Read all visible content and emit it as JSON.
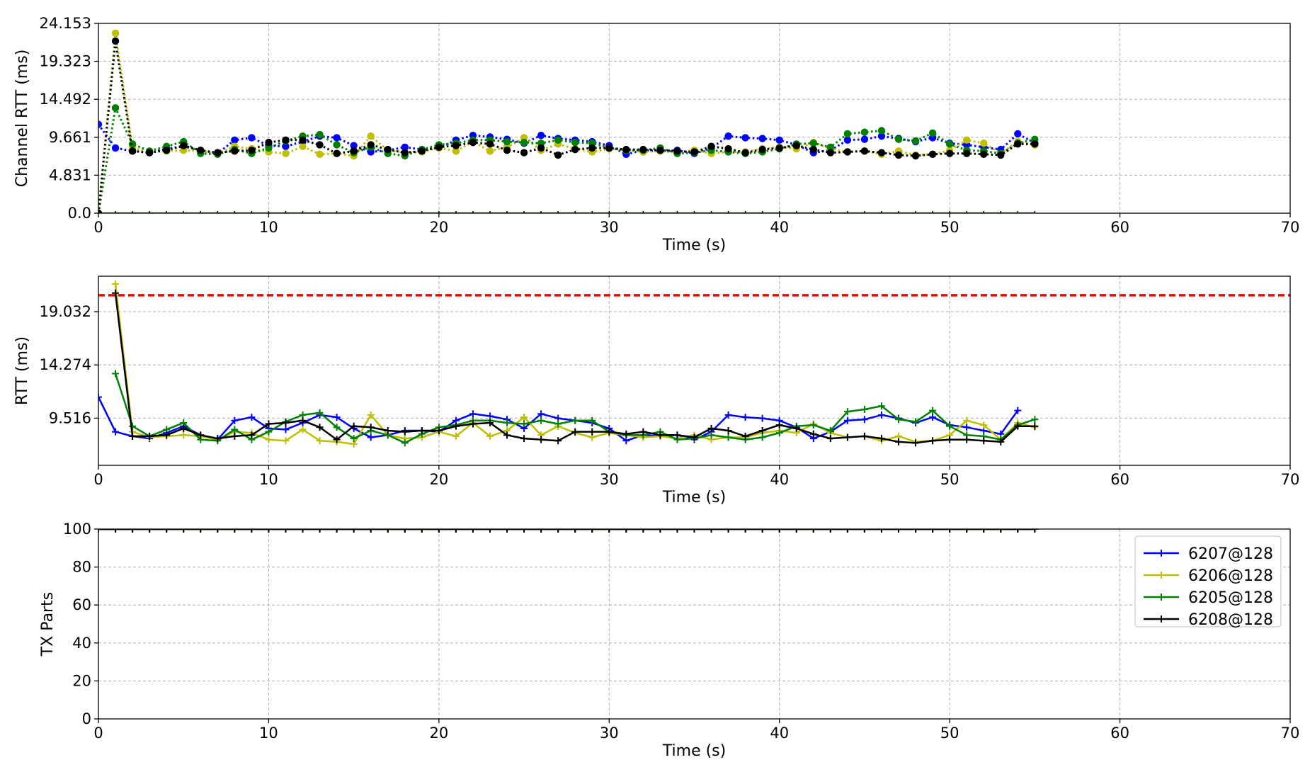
{
  "chart_data": [
    {
      "type": "line",
      "line_style": "dotted",
      "marker": "circle",
      "xlabel": "Time (s)",
      "ylabel": "Channel RTT (ms)",
      "xlim": [
        0,
        70
      ],
      "ylim": [
        0,
        24.153
      ],
      "xticks": [
        "0",
        "10",
        "20",
        "30",
        "40",
        "50",
        "60",
        "70"
      ],
      "yticks": [
        {
          "value": 0,
          "label": "0.0"
        },
        {
          "value": 4.831,
          "label": "4.831"
        },
        {
          "value": 9.661,
          "label": "9.661"
        },
        {
          "value": 14.492,
          "label": "14.492"
        },
        {
          "value": 19.323,
          "label": "19.323"
        },
        {
          "value": 24.153,
          "label": "24.153"
        }
      ],
      "grid": true,
      "baseline": {
        "y": 0,
        "x_range": [
          0,
          55
        ],
        "color": "#2e7d32"
      },
      "series": [
        {
          "name": "6207@128",
          "color": "#0000ff",
          "x": [
            0,
            1,
            2,
            3,
            4,
            5,
            6,
            7,
            8,
            9,
            10,
            11,
            12,
            13,
            14,
            15,
            16,
            17,
            18,
            19,
            20,
            21,
            22,
            23,
            24,
            25,
            26,
            27,
            28,
            29,
            30,
            31,
            32,
            33,
            34,
            35,
            36,
            37,
            38,
            39,
            40,
            41,
            42,
            43,
            44,
            45,
            46,
            47,
            48,
            49,
            50,
            51,
            52,
            53,
            54,
            55
          ],
          "y": [
            11.3,
            8.3,
            7.9,
            7.7,
            8.2,
            8.5,
            8.0,
            7.6,
            9.3,
            9.6,
            8.6,
            8.5,
            9.1,
            9.8,
            9.6,
            8.6,
            7.8,
            8.0,
            8.4,
            8.1,
            8.3,
            9.3,
            9.9,
            9.7,
            9.4,
            8.9,
            9.9,
            9.5,
            9.3,
            9.1,
            8.6,
            7.5,
            8.0,
            7.9,
            8.0,
            7.6,
            8.3,
            9.8,
            9.6,
            9.5,
            9.3,
            8.7,
            7.7,
            8.0,
            9.3,
            9.4,
            9.8,
            9.5,
            9.1,
            9.6,
            8.9,
            8.7,
            8.4,
            8.1,
            10.1,
            8.9
          ]
        },
        {
          "name": "6206@128",
          "color": "#bfbf00",
          "x": [
            0,
            1,
            2,
            3,
            4,
            5,
            6,
            7,
            8,
            9,
            10,
            11,
            12,
            13,
            14,
            15,
            16,
            17,
            18,
            19,
            20,
            21,
            22,
            23,
            24,
            25,
            26,
            27,
            28,
            29,
            30,
            31,
            32,
            33,
            34,
            35,
            36,
            37,
            38,
            39,
            40,
            41,
            42,
            43,
            44,
            45,
            46,
            47,
            48,
            49,
            50,
            51,
            52,
            53,
            54,
            55
          ],
          "y": [
            0,
            22.9,
            8.3,
            7.8,
            7.9,
            8.0,
            7.9,
            7.6,
            8.5,
            8.2,
            7.8,
            7.6,
            8.5,
            7.5,
            7.6,
            7.3,
            9.8,
            8.0,
            7.7,
            7.8,
            8.3,
            7.9,
            9.1,
            7.9,
            8.4,
            9.6,
            8.0,
            8.8,
            8.2,
            7.8,
            8.2,
            8.0,
            7.8,
            7.9,
            7.7,
            8.0,
            7.6,
            7.8,
            7.8,
            8.2,
            8.4,
            8.2,
            9.0,
            8.2,
            7.8,
            7.9,
            7.5,
            7.9,
            7.4,
            7.5,
            8.0,
            9.3,
            8.9,
            7.6,
            9.1,
            8.7
          ]
        },
        {
          "name": "6205@128",
          "color": "#008000",
          "x": [
            0,
            1,
            2,
            3,
            4,
            5,
            6,
            7,
            8,
            9,
            10,
            11,
            12,
            13,
            14,
            15,
            16,
            17,
            18,
            19,
            20,
            21,
            22,
            23,
            24,
            25,
            26,
            27,
            28,
            29,
            30,
            31,
            32,
            33,
            34,
            35,
            36,
            37,
            38,
            39,
            40,
            41,
            42,
            43,
            44,
            45,
            46,
            47,
            48,
            49,
            50,
            51,
            52,
            53,
            54,
            55
          ],
          "y": [
            0,
            13.4,
            8.8,
            7.9,
            8.5,
            9.1,
            7.6,
            7.5,
            8.1,
            7.6,
            8.3,
            9.2,
            9.8,
            10.0,
            8.7,
            7.7,
            8.4,
            7.6,
            7.3,
            8.1,
            8.7,
            8.9,
            9.3,
            9.3,
            9.1,
            9.0,
            8.9,
            9.3,
            9.0,
            8.9,
            8.3,
            8.0,
            8.0,
            8.3,
            7.6,
            7.7,
            8.0,
            7.8,
            7.6,
            7.8,
            8.2,
            8.8,
            8.9,
            8.4,
            10.1,
            10.3,
            10.5,
            9.4,
            9.2,
            10.2,
            8.8,
            8.0,
            7.9,
            7.6,
            8.9,
            9.4
          ]
        },
        {
          "name": "6208@128",
          "color": "#000000",
          "x": [
            0,
            1,
            2,
            3,
            4,
            5,
            6,
            7,
            8,
            9,
            10,
            11,
            12,
            13,
            14,
            15,
            16,
            17,
            18,
            19,
            20,
            21,
            22,
            23,
            24,
            25,
            26,
            27,
            28,
            29,
            30,
            31,
            32,
            33,
            34,
            35,
            36,
            37,
            38,
            39,
            40,
            41,
            42,
            43,
            44,
            45,
            46,
            47,
            48,
            49,
            50,
            51,
            52,
            53,
            54,
            55
          ],
          "y": [
            0,
            21.9,
            7.9,
            7.7,
            8.0,
            8.6,
            8.0,
            7.7,
            7.9,
            8.0,
            9.0,
            9.3,
            9.3,
            8.7,
            7.6,
            7.9,
            8.7,
            8.1,
            7.7,
            7.9,
            8.4,
            8.6,
            9.0,
            8.8,
            8.0,
            7.7,
            8.3,
            7.4,
            8.1,
            8.3,
            8.3,
            8.1,
            8.1,
            8.0,
            7.9,
            7.8,
            8.5,
            8.2,
            7.7,
            8.1,
            8.3,
            8.6,
            8.1,
            7.7,
            7.8,
            7.9,
            7.7,
            7.4,
            7.3,
            7.5,
            7.6,
            7.6,
            7.5,
            7.4,
            8.8,
            8.8
          ]
        }
      ]
    },
    {
      "type": "line",
      "line_style": "solid",
      "marker": "plus",
      "xlabel": "Time (s)",
      "ylabel": "RTT (ms)",
      "xlim": [
        0,
        70
      ],
      "ylim": [
        5.3,
        22.2
      ],
      "xticks": [
        "0",
        "10",
        "20",
        "30",
        "40",
        "50",
        "60",
        "70"
      ],
      "yticks": [
        {
          "value": 9.516,
          "label": "9.516"
        },
        {
          "value": 14.274,
          "label": "14.274"
        },
        {
          "value": 19.032,
          "label": "19.032"
        }
      ],
      "grid": true,
      "threshold": {
        "y": 20.5,
        "color": "#ff0000",
        "style": "dashed"
      },
      "series": [
        {
          "name": "6207@128",
          "color": "#0000ff",
          "x": [
            0,
            1,
            2,
            3,
            4,
            5,
            6,
            7,
            8,
            9,
            10,
            11,
            12,
            13,
            14,
            15,
            16,
            17,
            18,
            19,
            20,
            21,
            22,
            23,
            24,
            25,
            26,
            27,
            28,
            29,
            30,
            31,
            32,
            33,
            34,
            35,
            36,
            37,
            38,
            39,
            40,
            41,
            42,
            43,
            44,
            45,
            46,
            47,
            48,
            49,
            50,
            51,
            52,
            53,
            54
          ],
          "y": [
            11.4,
            8.3,
            7.9,
            7.7,
            8.2,
            8.8,
            8.0,
            7.6,
            9.3,
            9.6,
            8.6,
            8.5,
            9.1,
            9.8,
            9.6,
            8.6,
            7.8,
            8.0,
            8.4,
            8.4,
            8.3,
            9.3,
            9.9,
            9.7,
            9.4,
            8.6,
            9.9,
            9.5,
            9.3,
            9.1,
            8.6,
            7.5,
            8.0,
            7.9,
            8.0,
            7.6,
            8.3,
            9.8,
            9.6,
            9.5,
            9.3,
            8.7,
            7.7,
            8.3,
            9.3,
            9.4,
            9.8,
            9.5,
            9.1,
            9.6,
            8.9,
            8.7,
            8.4,
            8.1,
            10.2
          ]
        },
        {
          "name": "6206@128",
          "color": "#bfbf00",
          "x": [
            1,
            2,
            3,
            4,
            5,
            6,
            7,
            8,
            9,
            10,
            11,
            12,
            13,
            14,
            15,
            16,
            17,
            18,
            19,
            20,
            21,
            22,
            23,
            24,
            25,
            26,
            27,
            28,
            29,
            30,
            31,
            32,
            33,
            34,
            35,
            36,
            37,
            38,
            39,
            40,
            41,
            42,
            43,
            44,
            45,
            46,
            47,
            48,
            49,
            50,
            51,
            52,
            53,
            54,
            55
          ],
          "y": [
            21.5,
            8.3,
            7.8,
            7.9,
            8.0,
            7.9,
            7.6,
            8.3,
            8.2,
            7.6,
            7.5,
            8.5,
            7.5,
            7.4,
            7.2,
            9.8,
            8.0,
            7.7,
            7.8,
            8.3,
            7.9,
            9.1,
            7.9,
            8.4,
            9.6,
            8.0,
            8.8,
            8.2,
            7.8,
            8.2,
            8.0,
            7.8,
            7.9,
            7.7,
            8.0,
            7.6,
            7.8,
            7.8,
            8.2,
            8.4,
            8.2,
            9.0,
            8.2,
            7.8,
            7.9,
            7.5,
            7.9,
            7.4,
            7.5,
            8.0,
            9.3,
            8.9,
            7.6,
            9.1,
            8.7
          ]
        },
        {
          "name": "6205@128",
          "color": "#008000",
          "x": [
            1,
            2,
            3,
            4,
            5,
            6,
            7,
            8,
            9,
            10,
            11,
            12,
            13,
            14,
            15,
            16,
            17,
            18,
            19,
            20,
            21,
            22,
            23,
            24,
            25,
            26,
            27,
            28,
            29,
            30,
            31,
            32,
            33,
            34,
            35,
            36,
            37,
            38,
            39,
            40,
            41,
            42,
            43,
            44,
            45,
            46,
            47,
            48,
            49,
            50,
            51,
            52,
            53,
            54,
            55
          ],
          "y": [
            13.5,
            8.8,
            7.9,
            8.5,
            9.1,
            7.6,
            7.5,
            8.5,
            7.6,
            8.3,
            9.2,
            9.8,
            10.0,
            8.7,
            7.7,
            8.4,
            8.0,
            7.3,
            8.1,
            8.7,
            8.9,
            9.3,
            9.3,
            9.1,
            9.0,
            9.3,
            9.0,
            9.3,
            9.3,
            8.3,
            8.0,
            8.0,
            8.3,
            7.6,
            7.7,
            8.0,
            7.8,
            7.6,
            7.8,
            8.2,
            8.8,
            8.9,
            8.4,
            10.1,
            10.3,
            10.6,
            9.4,
            9.2,
            10.2,
            8.8,
            8.0,
            7.9,
            7.6,
            8.9,
            9.4
          ]
        },
        {
          "name": "6208@128",
          "color": "#000000",
          "x": [
            1,
            2,
            3,
            4,
            5,
            6,
            7,
            8,
            9,
            10,
            11,
            12,
            13,
            14,
            15,
            16,
            17,
            18,
            19,
            20,
            21,
            22,
            23,
            24,
            25,
            26,
            27,
            28,
            29,
            30,
            31,
            32,
            33,
            34,
            35,
            36,
            37,
            38,
            39,
            40,
            41,
            42,
            43,
            44,
            45,
            46,
            47,
            48,
            49,
            50,
            51,
            52,
            53,
            54,
            55
          ],
          "y": [
            20.7,
            7.9,
            7.9,
            8.0,
            8.6,
            8.0,
            7.7,
            7.9,
            8.0,
            9.0,
            9.1,
            9.3,
            8.7,
            7.6,
            8.8,
            8.7,
            8.4,
            8.3,
            8.4,
            8.4,
            8.8,
            9.0,
            9.1,
            8.0,
            7.7,
            7.6,
            7.5,
            8.3,
            8.3,
            8.3,
            8.1,
            8.3,
            8.0,
            8.0,
            7.8,
            8.6,
            8.4,
            7.9,
            8.4,
            8.9,
            8.6,
            8.1,
            7.7,
            7.8,
            7.9,
            7.7,
            7.4,
            7.3,
            7.5,
            7.6,
            7.6,
            7.5,
            7.4,
            8.8,
            8.8
          ]
        }
      ]
    },
    {
      "type": "line",
      "line_style": "solid",
      "marker": "plus",
      "xlabel": "Time (s)",
      "ylabel": "TX Parts",
      "xlim": [
        0,
        70
      ],
      "ylim": [
        0,
        100
      ],
      "xticks": [
        "0",
        "10",
        "20",
        "30",
        "40",
        "50",
        "60",
        "70"
      ],
      "yticks": [
        {
          "value": 0,
          "label": "0"
        },
        {
          "value": 20,
          "label": "20"
        },
        {
          "value": 40,
          "label": "40"
        },
        {
          "value": 60,
          "label": "60"
        },
        {
          "value": 80,
          "label": "80"
        },
        {
          "value": 100,
          "label": "100"
        }
      ],
      "grid": true,
      "legend_position": "top-right",
      "series": [
        {
          "name": "6207@128",
          "color": "#0000ff",
          "x_range": [
            0,
            55
          ],
          "constant": 100
        },
        {
          "name": "6206@128",
          "color": "#bfbf00",
          "x_range": [
            0,
            55
          ],
          "constant": 100
        },
        {
          "name": "6205@128",
          "color": "#008000",
          "x_range": [
            0,
            55
          ],
          "constant": 100
        },
        {
          "name": "6208@128",
          "color": "#000000",
          "x_range": [
            0,
            55
          ],
          "constant": 100
        }
      ]
    }
  ]
}
